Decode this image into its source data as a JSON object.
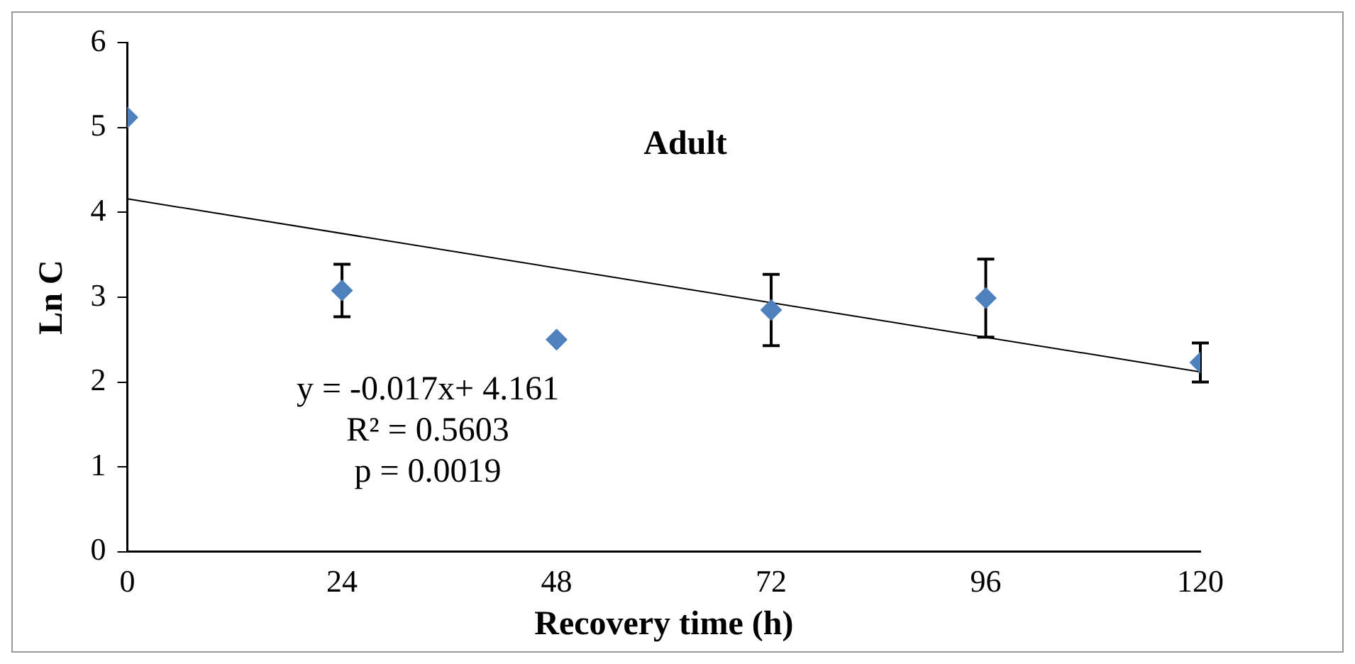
{
  "chart_data": {
    "type": "scatter",
    "title": "Adult",
    "xlabel": "Recovery time (h)",
    "ylabel": "Ln C",
    "x": [
      0,
      24,
      48,
      72,
      96,
      120
    ],
    "series": [
      {
        "type": "scatter",
        "color": "#4f81bd",
        "values": [
          5.12,
          3.08,
          2.5,
          2.85,
          2.99,
          2.23
        ],
        "errors": [
          null,
          0.31,
          null,
          0.42,
          0.46,
          0.23
        ],
        "marker": "diamond"
      },
      {
        "type": "line",
        "color": "#000000",
        "x": [
          0,
          120
        ],
        "values": [
          4.16,
          2.12
        ],
        "marker": "none"
      }
    ],
    "annotations": [
      "y = -0.017x+ 4.161",
      "R² = 0.5603",
      "p = 0.0019"
    ],
    "xlim": [
      0,
      120
    ],
    "xticks": [
      0,
      24,
      48,
      72,
      96,
      120
    ],
    "ylim": [
      0,
      6
    ],
    "yticks": [
      0,
      1,
      2,
      3,
      4,
      5,
      6
    ],
    "grid": false,
    "legend": false
  }
}
